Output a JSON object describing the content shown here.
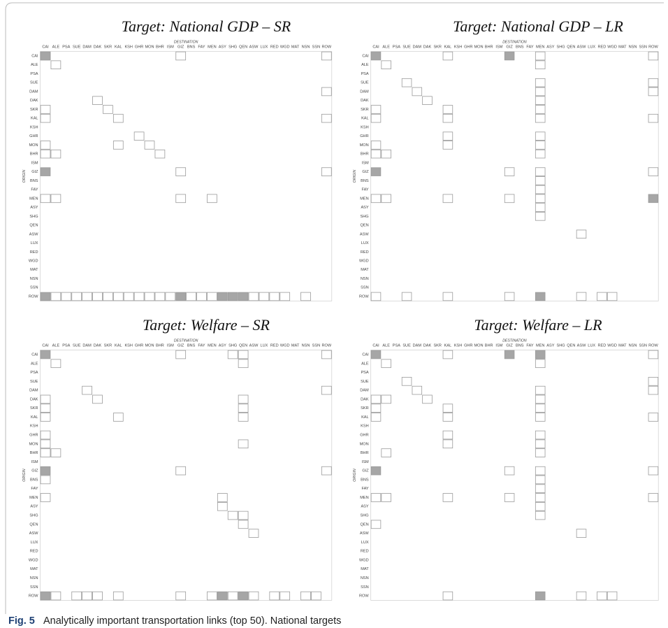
{
  "regions": [
    "CAI",
    "ALE",
    "PSA",
    "SUE",
    "DAM",
    "DAK",
    "SKR",
    "KAL",
    "KSH",
    "GHR",
    "MON",
    "BHR",
    "ISM",
    "GIZ",
    "BNS",
    "FAY",
    "MEN",
    "ASY",
    "SHG",
    "QEN",
    "ASW",
    "LUX",
    "RED",
    "WGD",
    "MAT",
    "NSN",
    "SSN",
    "ROW"
  ],
  "axis": {
    "destination": "DESTINATION",
    "origin": "ORIGIN"
  },
  "shade_color": "#a6a6a6",
  "panels": [
    {
      "title": "Target: National GDP – SR",
      "shaded": [
        [
          "CAI",
          "CAI"
        ],
        [
          "GIZ",
          "CAI"
        ],
        [
          "ROW",
          "CAI"
        ],
        [
          "ROW",
          "GIZ"
        ],
        [
          "ROW",
          "ASY"
        ],
        [
          "ROW",
          "SHG"
        ],
        [
          "ROW",
          "QEN"
        ]
      ],
      "outlined": [
        [
          "CAI",
          "CAI"
        ],
        [
          "CAI",
          "GIZ"
        ],
        [
          "CAI",
          "ROW"
        ],
        [
          "ALE",
          "ALE"
        ],
        [
          "DAM",
          "ROW"
        ],
        [
          "DAK",
          "DAK"
        ],
        [
          "SKR",
          "CAI"
        ],
        [
          "SKR",
          "SKR"
        ],
        [
          "KAL",
          "CAI"
        ],
        [
          "KAL",
          "KAL"
        ],
        [
          "KAL",
          "ROW"
        ],
        [
          "GHR",
          "GHR"
        ],
        [
          "MON",
          "CAI"
        ],
        [
          "MON",
          "KAL"
        ],
        [
          "MON",
          "MON"
        ],
        [
          "BHR",
          "CAI"
        ],
        [
          "BHR",
          "ALE"
        ],
        [
          "BHR",
          "BHR"
        ],
        [
          "GIZ",
          "GIZ"
        ],
        [
          "GIZ",
          "ROW"
        ],
        [
          "MEN",
          "CAI"
        ],
        [
          "MEN",
          "ALE"
        ],
        [
          "MEN",
          "GIZ"
        ],
        [
          "MEN",
          "MEN"
        ],
        [
          "ROW",
          "ALE"
        ],
        [
          "ROW",
          "PSA"
        ],
        [
          "ROW",
          "SUE"
        ],
        [
          "ROW",
          "DAM"
        ],
        [
          "ROW",
          "DAK"
        ],
        [
          "ROW",
          "SKR"
        ],
        [
          "ROW",
          "KAL"
        ],
        [
          "ROW",
          "KSH"
        ],
        [
          "ROW",
          "GHR"
        ],
        [
          "ROW",
          "MON"
        ],
        [
          "ROW",
          "BHR"
        ],
        [
          "ROW",
          "ISM"
        ],
        [
          "ROW",
          "BNS"
        ],
        [
          "ROW",
          "FAY"
        ],
        [
          "ROW",
          "MEN"
        ],
        [
          "ROW",
          "ASW"
        ],
        [
          "ROW",
          "LUX"
        ],
        [
          "ROW",
          "RED"
        ],
        [
          "ROW",
          "WGD"
        ],
        [
          "ROW",
          "NSN"
        ]
      ]
    },
    {
      "title": "Target: National GDP – LR",
      "shaded": [
        [
          "CAI",
          "CAI"
        ],
        [
          "CAI",
          "GIZ"
        ],
        [
          "GIZ",
          "CAI"
        ],
        [
          "MEN",
          "ROW"
        ],
        [
          "ROW",
          "MEN"
        ]
      ],
      "outlined": [
        [
          "CAI",
          "KAL"
        ],
        [
          "CAI",
          "MEN"
        ],
        [
          "CAI",
          "ROW"
        ],
        [
          "ALE",
          "ALE"
        ],
        [
          "ALE",
          "MEN"
        ],
        [
          "SUE",
          "SUE"
        ],
        [
          "SUE",
          "MEN"
        ],
        [
          "SUE",
          "ROW"
        ],
        [
          "DAM",
          "DAM"
        ],
        [
          "DAM",
          "MEN"
        ],
        [
          "DAM",
          "ROW"
        ],
        [
          "DAK",
          "DAK"
        ],
        [
          "DAK",
          "MEN"
        ],
        [
          "SKR",
          "CAI"
        ],
        [
          "SKR",
          "KAL"
        ],
        [
          "SKR",
          "MEN"
        ],
        [
          "KAL",
          "CAI"
        ],
        [
          "KAL",
          "KAL"
        ],
        [
          "KAL",
          "MEN"
        ],
        [
          "KAL",
          "ROW"
        ],
        [
          "GHR",
          "KAL"
        ],
        [
          "GHR",
          "MEN"
        ],
        [
          "MON",
          "CAI"
        ],
        [
          "MON",
          "KAL"
        ],
        [
          "MON",
          "MEN"
        ],
        [
          "BHR",
          "CAI"
        ],
        [
          "BHR",
          "ALE"
        ],
        [
          "BHR",
          "MEN"
        ],
        [
          "GIZ",
          "GIZ"
        ],
        [
          "GIZ",
          "MEN"
        ],
        [
          "GIZ",
          "ROW"
        ],
        [
          "BNS",
          "MEN"
        ],
        [
          "FAY",
          "MEN"
        ],
        [
          "MEN",
          "CAI"
        ],
        [
          "MEN",
          "ALE"
        ],
        [
          "MEN",
          "KAL"
        ],
        [
          "MEN",
          "GIZ"
        ],
        [
          "MEN",
          "MEN"
        ],
        [
          "ASY",
          "MEN"
        ],
        [
          "SHG",
          "MEN"
        ],
        [
          "ASW",
          "ASW"
        ],
        [
          "ROW",
          "CAI"
        ],
        [
          "ROW",
          "SUE"
        ],
        [
          "ROW",
          "KAL"
        ],
        [
          "ROW",
          "GIZ"
        ],
        [
          "ROW",
          "ASW"
        ],
        [
          "ROW",
          "RED"
        ],
        [
          "ROW",
          "WGD"
        ]
      ]
    },
    {
      "title": "Target: Welfare – SR",
      "shaded": [
        [
          "CAI",
          "CAI"
        ],
        [
          "GIZ",
          "CAI"
        ],
        [
          "ROW",
          "CAI"
        ],
        [
          "ROW",
          "ASY"
        ],
        [
          "ROW",
          "QEN"
        ]
      ],
      "outlined": [
        [
          "CAI",
          "GIZ"
        ],
        [
          "CAI",
          "SHG"
        ],
        [
          "CAI",
          "QEN"
        ],
        [
          "CAI",
          "ROW"
        ],
        [
          "ALE",
          "ALE"
        ],
        [
          "ALE",
          "QEN"
        ],
        [
          "DAM",
          "DAM"
        ],
        [
          "DAM",
          "ROW"
        ],
        [
          "DAK",
          "CAI"
        ],
        [
          "DAK",
          "DAK"
        ],
        [
          "DAK",
          "QEN"
        ],
        [
          "SKR",
          "CAI"
        ],
        [
          "SKR",
          "QEN"
        ],
        [
          "KAL",
          "CAI"
        ],
        [
          "KAL",
          "KAL"
        ],
        [
          "KAL",
          "QEN"
        ],
        [
          "GHR",
          "CAI"
        ],
        [
          "MON",
          "CAI"
        ],
        [
          "MON",
          "QEN"
        ],
        [
          "BHR",
          "CAI"
        ],
        [
          "BHR",
          "ALE"
        ],
        [
          "GIZ",
          "GIZ"
        ],
        [
          "GIZ",
          "ROW"
        ],
        [
          "BNS",
          "CAI"
        ],
        [
          "MEN",
          "CAI"
        ],
        [
          "MEN",
          "ASY"
        ],
        [
          "ASY",
          "ASY"
        ],
        [
          "SHG",
          "SHG"
        ],
        [
          "SHG",
          "QEN"
        ],
        [
          "QEN",
          "QEN"
        ],
        [
          "ASW",
          "ASW"
        ],
        [
          "ROW",
          "ALE"
        ],
        [
          "ROW",
          "SUE"
        ],
        [
          "ROW",
          "DAM"
        ],
        [
          "ROW",
          "DAK"
        ],
        [
          "ROW",
          "KAL"
        ],
        [
          "ROW",
          "GIZ"
        ],
        [
          "ROW",
          "MEN"
        ],
        [
          "ROW",
          "SHG"
        ],
        [
          "ROW",
          "ASW"
        ],
        [
          "ROW",
          "RED"
        ],
        [
          "ROW",
          "WGD"
        ],
        [
          "ROW",
          "NSN"
        ],
        [
          "ROW",
          "SSN"
        ]
      ]
    },
    {
      "title": "Target: Welfare – LR",
      "shaded": [
        [
          "CAI",
          "CAI"
        ],
        [
          "CAI",
          "GIZ"
        ],
        [
          "CAI",
          "MEN"
        ],
        [
          "GIZ",
          "CAI"
        ],
        [
          "ROW",
          "MEN"
        ]
      ],
      "outlined": [
        [
          "CAI",
          "KAL"
        ],
        [
          "CAI",
          "ROW"
        ],
        [
          "ALE",
          "ALE"
        ],
        [
          "ALE",
          "MEN"
        ],
        [
          "SUE",
          "SUE"
        ],
        [
          "SUE",
          "ROW"
        ],
        [
          "DAM",
          "DAM"
        ],
        [
          "DAM",
          "MEN"
        ],
        [
          "DAM",
          "ROW"
        ],
        [
          "DAK",
          "CAI"
        ],
        [
          "DAK",
          "ALE"
        ],
        [
          "DAK",
          "DAK"
        ],
        [
          "DAK",
          "MEN"
        ],
        [
          "SKR",
          "CAI"
        ],
        [
          "SKR",
          "KAL"
        ],
        [
          "SKR",
          "MEN"
        ],
        [
          "KAL",
          "CAI"
        ],
        [
          "KAL",
          "KAL"
        ],
        [
          "KAL",
          "MEN"
        ],
        [
          "KAL",
          "ROW"
        ],
        [
          "GHR",
          "KAL"
        ],
        [
          "GHR",
          "MEN"
        ],
        [
          "MON",
          "KAL"
        ],
        [
          "MON",
          "MEN"
        ],
        [
          "BHR",
          "ALE"
        ],
        [
          "BHR",
          "MEN"
        ],
        [
          "GIZ",
          "GIZ"
        ],
        [
          "GIZ",
          "MEN"
        ],
        [
          "GIZ",
          "ROW"
        ],
        [
          "BNS",
          "MEN"
        ],
        [
          "FAY",
          "MEN"
        ],
        [
          "MEN",
          "CAI"
        ],
        [
          "MEN",
          "ALE"
        ],
        [
          "MEN",
          "KAL"
        ],
        [
          "MEN",
          "GIZ"
        ],
        [
          "MEN",
          "MEN"
        ],
        [
          "MEN",
          "ROW"
        ],
        [
          "ASY",
          "MEN"
        ],
        [
          "SHG",
          "MEN"
        ],
        [
          "QEN",
          "CAI"
        ],
        [
          "ASW",
          "ASW"
        ],
        [
          "ROW",
          "KAL"
        ],
        [
          "ROW",
          "ASW"
        ],
        [
          "ROW",
          "RED"
        ],
        [
          "ROW",
          "WGD"
        ]
      ]
    }
  ],
  "caption": {
    "label": "Fig. 5",
    "text": "Analytically important transportation links (top 50). National targets"
  }
}
